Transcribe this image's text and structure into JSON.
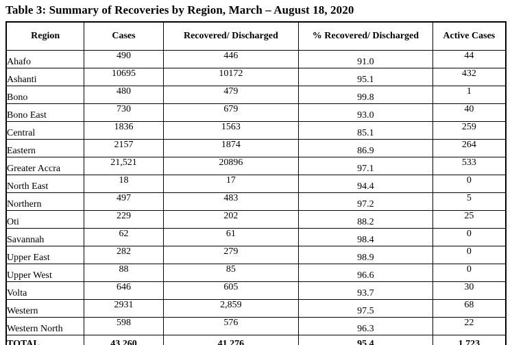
{
  "title": "Table 3: Summary of Recoveries by Region, March – August 18, 2020",
  "colors": {
    "text": "#000000",
    "border": "#000000",
    "background": "#ffffff"
  },
  "table": {
    "columns": [
      {
        "key": "region",
        "label": "Region"
      },
      {
        "key": "cases",
        "label": "Cases"
      },
      {
        "key": "recovered",
        "label": "Recovered/ Discharged"
      },
      {
        "key": "pct_recovered",
        "label": "% Recovered/ Discharged"
      },
      {
        "key": "active",
        "label": "Active Cases"
      }
    ],
    "rows": [
      {
        "region": "Ahafo",
        "cases": "490",
        "recovered": "446",
        "pct_recovered": "91.0",
        "active": "44"
      },
      {
        "region": "Ashanti",
        "cases": "10695",
        "recovered": "10172",
        "pct_recovered": "95.1",
        "active": "432"
      },
      {
        "region": "Bono",
        "cases": "480",
        "recovered": "479",
        "pct_recovered": "99.8",
        "active": "1"
      },
      {
        "region": "Bono East",
        "cases": "730",
        "recovered": "679",
        "pct_recovered": "93.0",
        "active": "40"
      },
      {
        "region": "Central",
        "cases": "1836",
        "recovered": "1563",
        "pct_recovered": "85.1",
        "active": "259"
      },
      {
        "region": "Eastern",
        "cases": "2157",
        "recovered": "1874",
        "pct_recovered": "86.9",
        "active": "264"
      },
      {
        "region": "Greater Accra",
        "cases": "21,521",
        "recovered": "20896",
        "pct_recovered": "97.1",
        "active": "533"
      },
      {
        "region": "North East",
        "cases": "18",
        "recovered": "17",
        "pct_recovered": "94.4",
        "active": "0"
      },
      {
        "region": "Northern",
        "cases": "497",
        "recovered": "483",
        "pct_recovered": "97.2",
        "active": "5"
      },
      {
        "region": "Oti",
        "cases": "229",
        "recovered": "202",
        "pct_recovered": "88.2",
        "active": "25"
      },
      {
        "region": "Savannah",
        "cases": "62",
        "recovered": "61",
        "pct_recovered": "98.4",
        "active": "0"
      },
      {
        "region": "Upper East",
        "cases": "282",
        "recovered": "279",
        "pct_recovered": "98.9",
        "active": "0"
      },
      {
        "region": "Upper West",
        "cases": "88",
        "recovered": "85",
        "pct_recovered": "96.6",
        "active": "0"
      },
      {
        "region": "Volta",
        "cases": "646",
        "recovered": "605",
        "pct_recovered": "93.7",
        "active": "30"
      },
      {
        "region": "Western",
        "cases": "2931",
        "recovered": "2,859",
        "pct_recovered": "97.5",
        "active": "68"
      },
      {
        "region": "Western North",
        "cases": "598",
        "recovered": "576",
        "pct_recovered": "96.3",
        "active": "22"
      }
    ],
    "total": {
      "region": "TOTAL",
      "cases": "43,260",
      "recovered": "41,276",
      "pct_recovered": "95.4",
      "active": "1,723"
    }
  }
}
